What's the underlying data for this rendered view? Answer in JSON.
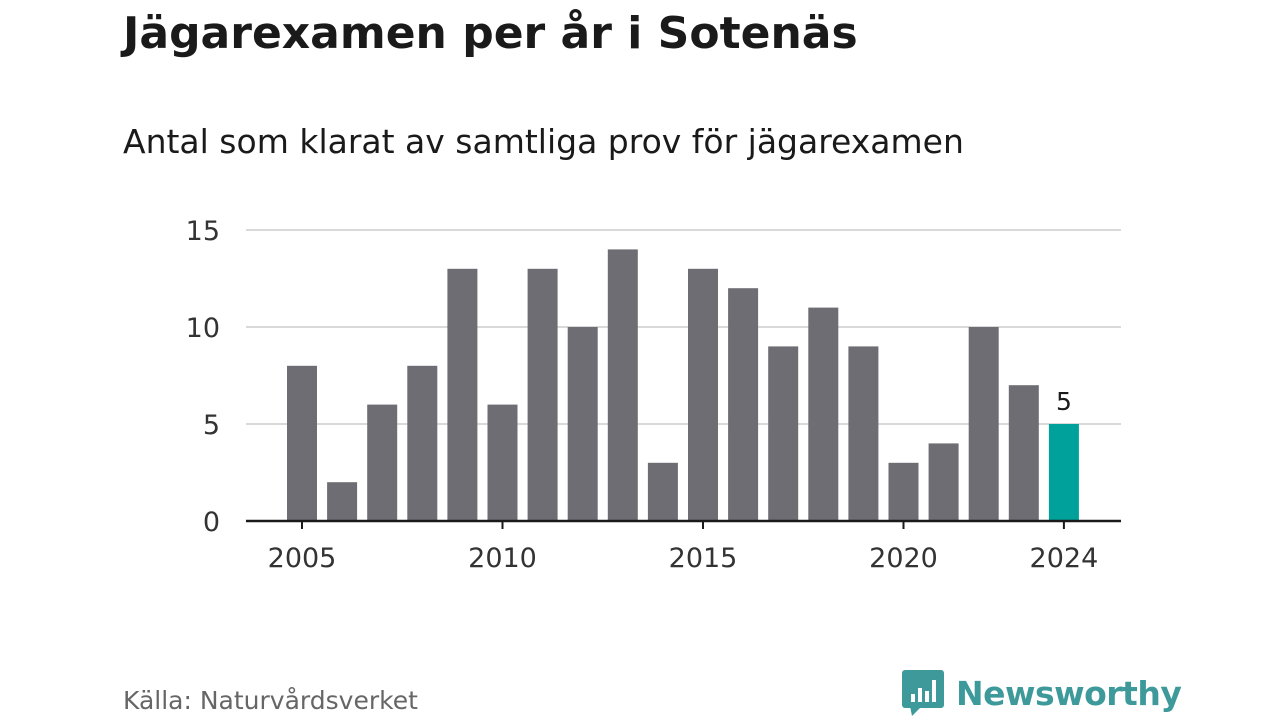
{
  "header": {
    "title": "Jägarexamen per år i Sotenäs",
    "subtitle": "Antal som klarat av samtliga prov för jägarexamen"
  },
  "footer": {
    "source": "Källa: Naturvårdsverket",
    "brand": "Newsworthy"
  },
  "colors": {
    "bar": "#6e6d73",
    "highlight": "#00a19a",
    "grid": "#d9d9d9",
    "axis": "#1a1a1a",
    "brand": "#3e9a9a"
  },
  "chart_data": {
    "type": "bar",
    "title": "Jägarexamen per år i Sotenäs",
    "subtitle": "Antal som klarat av samtliga prov för jägarexamen",
    "xlabel": "",
    "ylabel": "",
    "categories": [
      2005,
      2006,
      2007,
      2008,
      2009,
      2010,
      2011,
      2012,
      2013,
      2014,
      2015,
      2016,
      2017,
      2018,
      2019,
      2020,
      2021,
      2022,
      2023,
      2024
    ],
    "values": [
      8,
      2,
      6,
      8,
      13,
      6,
      13,
      10,
      14,
      3,
      13,
      12,
      9,
      11,
      9,
      3,
      4,
      10,
      7,
      5
    ],
    "ylim": [
      0,
      15
    ],
    "yticks": [
      0,
      5,
      10,
      15
    ],
    "xticks": [
      2005,
      2010,
      2015,
      2020,
      2024
    ],
    "highlight_category": 2024,
    "data_labels": [
      {
        "category": 2024,
        "text": "5"
      }
    ],
    "grid": true,
    "legend": "none"
  }
}
